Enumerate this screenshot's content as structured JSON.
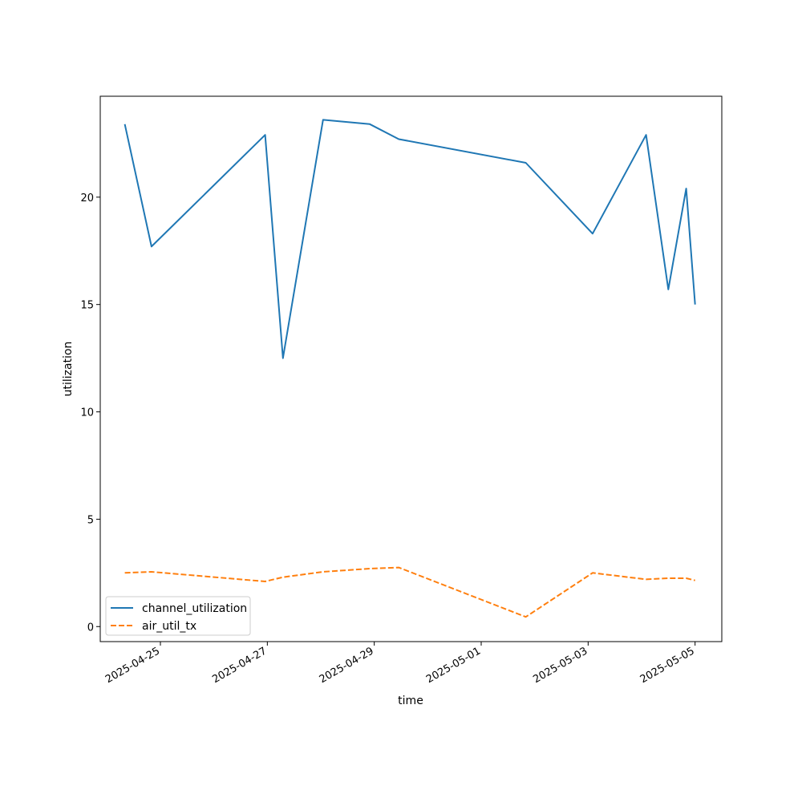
{
  "chart_data": {
    "type": "line",
    "title": "",
    "xlabel": "time",
    "ylabel": "utilization",
    "x_tick_labels": [
      "2025-04-25",
      "2025-04-27",
      "2025-04-29",
      "2025-05-01",
      "2025-05-03",
      "2025-05-05"
    ],
    "y_tick_labels": [
      "0",
      "5",
      "10",
      "15",
      "20"
    ],
    "y_ticks": [
      0,
      5,
      10,
      15,
      20
    ],
    "x_ticks": [
      "2025-04-25T00:00",
      "2025-04-27T00:00",
      "2025-04-29T00:00",
      "2025-05-01T00:00",
      "2025-05-03T00:00",
      "2025-05-05T00:00"
    ],
    "xlim": [
      "2025-04-23T21:00",
      "2025-05-05T12:00"
    ],
    "ylim": [
      -0.7,
      24.7
    ],
    "grid": false,
    "legend_position": "lower-left",
    "series": [
      {
        "name": "channel_utilization",
        "color": "#1f77b4",
        "style": "solid",
        "points": [
          {
            "x": "2025-04-24T08:00",
            "y": 23.4
          },
          {
            "x": "2025-04-24T20:00",
            "y": 17.7
          },
          {
            "x": "2025-04-26T23:00",
            "y": 22.9
          },
          {
            "x": "2025-04-27T07:00",
            "y": 12.5
          },
          {
            "x": "2025-04-28T01:00",
            "y": 23.6
          },
          {
            "x": "2025-04-28T22:00",
            "y": 23.4
          },
          {
            "x": "2025-04-29T11:00",
            "y": 22.7
          },
          {
            "x": "2025-05-01T20:00",
            "y": 21.6
          },
          {
            "x": "2025-05-03T02:00",
            "y": 18.3
          },
          {
            "x": "2025-05-04T02:00",
            "y": 22.9
          },
          {
            "x": "2025-05-04T12:00",
            "y": 15.7
          },
          {
            "x": "2025-05-04T20:00",
            "y": 20.4
          },
          {
            "x": "2025-05-05T00:00",
            "y": 15.0
          }
        ]
      },
      {
        "name": "air_util_tx",
        "color": "#ff7f0e",
        "style": "dashed",
        "points": [
          {
            "x": "2025-04-24T08:00",
            "y": 2.5
          },
          {
            "x": "2025-04-24T20:00",
            "y": 2.55
          },
          {
            "x": "2025-04-26T23:00",
            "y": 2.1
          },
          {
            "x": "2025-04-27T07:00",
            "y": 2.3
          },
          {
            "x": "2025-04-28T01:00",
            "y": 2.55
          },
          {
            "x": "2025-04-28T22:00",
            "y": 2.7
          },
          {
            "x": "2025-04-29T11:00",
            "y": 2.75
          },
          {
            "x": "2025-05-01T20:00",
            "y": 0.45
          },
          {
            "x": "2025-05-03T02:00",
            "y": 2.5
          },
          {
            "x": "2025-05-04T02:00",
            "y": 2.2
          },
          {
            "x": "2025-05-04T12:00",
            "y": 2.25
          },
          {
            "x": "2025-05-04T20:00",
            "y": 2.25
          },
          {
            "x": "2025-05-05T00:00",
            "y": 2.15
          }
        ]
      }
    ]
  }
}
